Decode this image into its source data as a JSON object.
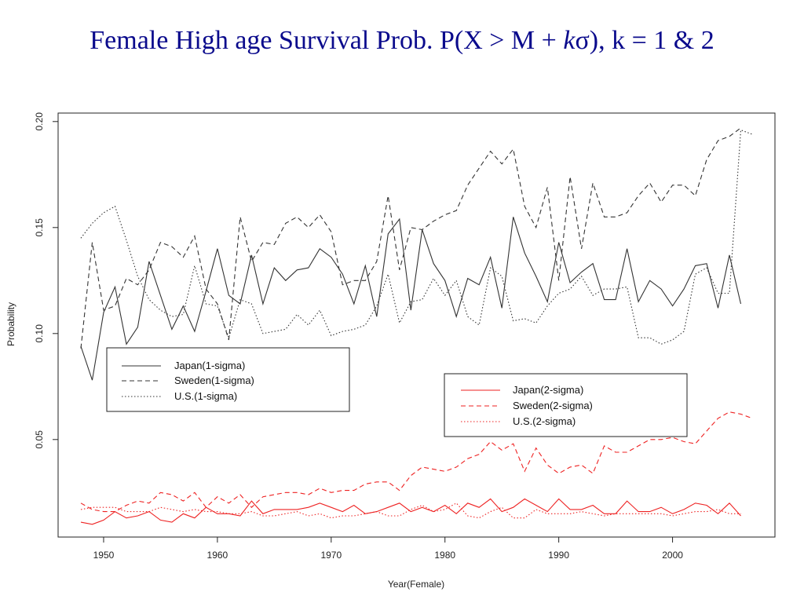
{
  "slide": {
    "title_prefix": "Female High age Survival Prob. P(X > M + ",
    "title_italic": "k",
    "title_sigma": "σ",
    "title_suffix": "), k = 1 & 2"
  },
  "chart_data": {
    "type": "line",
    "xlabel": "Year(Female)",
    "ylabel": "Probability",
    "xlim": [
      1946,
      2009
    ],
    "ylim": [
      0.004,
      0.204
    ],
    "xticks": [
      1950,
      1960,
      1970,
      1980,
      1990,
      2000
    ],
    "yticks": [
      0.05,
      0.1,
      0.15,
      0.2
    ],
    "ytick_labels": [
      "0.05",
      "0.10",
      "0.15",
      "0.20"
    ],
    "grid": false,
    "legends": [
      {
        "placement": "upper-left",
        "entries": [
          "Japan(1-sigma)",
          "Sweden(1-sigma)",
          "U.S.(1-sigma)"
        ]
      },
      {
        "placement": "middle-right",
        "entries": [
          "Japan(2-sigma)",
          "Sweden(2-sigma)",
          "U.S.(2-sigma)"
        ]
      }
    ],
    "series": [
      {
        "name": "Japan(1-sigma)",
        "color": "#333333",
        "dash": "solid",
        "x": [
          1948,
          1949,
          1950,
          1951,
          1952,
          1953,
          1954,
          1955,
          1956,
          1957,
          1958,
          1959,
          1960,
          1961,
          1962,
          1963,
          1964,
          1965,
          1966,
          1967,
          1968,
          1969,
          1970,
          1971,
          1972,
          1973,
          1974,
          1975,
          1976,
          1977,
          1978,
          1979,
          1980,
          1981,
          1982,
          1983,
          1984,
          1985,
          1986,
          1987,
          1988,
          1989,
          1990,
          1991,
          1992,
          1993,
          1994,
          1995,
          1996,
          1997,
          1998,
          1999,
          2000,
          2001,
          2002,
          2003,
          2004,
          2005,
          2006
        ],
        "y": [
          0.094,
          0.078,
          0.11,
          0.122,
          0.095,
          0.103,
          0.134,
          0.118,
          0.102,
          0.113,
          0.101,
          0.12,
          0.14,
          0.118,
          0.114,
          0.137,
          0.114,
          0.131,
          0.125,
          0.13,
          0.131,
          0.14,
          0.136,
          0.128,
          0.114,
          0.132,
          0.108,
          0.147,
          0.154,
          0.111,
          0.149,
          0.133,
          0.125,
          0.108,
          0.126,
          0.123,
          0.136,
          0.112,
          0.155,
          0.138,
          0.127,
          0.115,
          0.143,
          0.124,
          0.129,
          0.133,
          0.116,
          0.116,
          0.14,
          0.115,
          0.125,
          0.121,
          0.113,
          0.121,
          0.132,
          0.133,
          0.112,
          0.137,
          0.114
        ]
      },
      {
        "name": "Sweden(1-sigma)",
        "color": "#333333",
        "dash": "dashed",
        "x": [
          1948,
          1949,
          1950,
          1951,
          1952,
          1953,
          1954,
          1955,
          1956,
          1957,
          1958,
          1959,
          1960,
          1961,
          1962,
          1963,
          1964,
          1965,
          1966,
          1967,
          1968,
          1969,
          1970,
          1971,
          1972,
          1973,
          1974,
          1975,
          1976,
          1977,
          1978,
          1979,
          1980,
          1981,
          1982,
          1983,
          1984,
          1985,
          1986,
          1987,
          1988,
          1989,
          1990,
          1991,
          1992,
          1993,
          1994,
          1995,
          1996,
          1997,
          1998,
          1999,
          2000,
          2001,
          2002,
          2003,
          2004,
          2005,
          2006
        ],
        "y": [
          0.093,
          0.143,
          0.111,
          0.113,
          0.126,
          0.123,
          0.13,
          0.143,
          0.141,
          0.136,
          0.146,
          0.121,
          0.114,
          0.097,
          0.155,
          0.134,
          0.143,
          0.142,
          0.152,
          0.155,
          0.15,
          0.156,
          0.148,
          0.123,
          0.125,
          0.125,
          0.134,
          0.165,
          0.13,
          0.15,
          0.149,
          0.153,
          0.156,
          0.158,
          0.17,
          0.178,
          0.186,
          0.18,
          0.187,
          0.16,
          0.15,
          0.169,
          0.125,
          0.174,
          0.14,
          0.171,
          0.155,
          0.155,
          0.157,
          0.165,
          0.171,
          0.162,
          0.17,
          0.17,
          0.165,
          0.182,
          0.191,
          0.193,
          0.197
        ]
      },
      {
        "name": "U.S.(1-sigma)",
        "color": "#333333",
        "dash": "dotted",
        "x": [
          1948,
          1949,
          1950,
          1951,
          1952,
          1953,
          1954,
          1955,
          1956,
          1957,
          1958,
          1959,
          1960,
          1961,
          1962,
          1963,
          1964,
          1965,
          1966,
          1967,
          1968,
          1969,
          1970,
          1971,
          1972,
          1973,
          1974,
          1975,
          1976,
          1977,
          1978,
          1979,
          1980,
          1981,
          1982,
          1983,
          1984,
          1985,
          1986,
          1987,
          1988,
          1989,
          1990,
          1991,
          1992,
          1993,
          1994,
          1995,
          1996,
          1997,
          1998,
          1999,
          2000,
          2001,
          2002,
          2003,
          2004,
          2005,
          2006,
          2007
        ],
        "y": [
          0.145,
          0.152,
          0.157,
          0.16,
          0.144,
          0.127,
          0.116,
          0.111,
          0.108,
          0.109,
          0.132,
          0.114,
          0.113,
          0.098,
          0.116,
          0.114,
          0.1,
          0.101,
          0.102,
          0.109,
          0.104,
          0.111,
          0.099,
          0.101,
          0.102,
          0.104,
          0.113,
          0.128,
          0.105,
          0.115,
          0.116,
          0.126,
          0.118,
          0.125,
          0.108,
          0.104,
          0.131,
          0.127,
          0.106,
          0.107,
          0.105,
          0.113,
          0.119,
          0.121,
          0.127,
          0.118,
          0.121,
          0.121,
          0.122,
          0.098,
          0.098,
          0.095,
          0.097,
          0.101,
          0.128,
          0.131,
          0.119,
          0.119,
          0.196,
          0.194
        ]
      },
      {
        "name": "Japan(2-sigma)",
        "color": "#ee2222",
        "dash": "solid",
        "x": [
          1948,
          1949,
          1950,
          1951,
          1952,
          1953,
          1954,
          1955,
          1956,
          1957,
          1958,
          1959,
          1960,
          1961,
          1962,
          1963,
          1964,
          1965,
          1966,
          1967,
          1968,
          1969,
          1970,
          1971,
          1972,
          1973,
          1974,
          1975,
          1976,
          1977,
          1978,
          1979,
          1980,
          1981,
          1982,
          1983,
          1984,
          1985,
          1986,
          1987,
          1988,
          1989,
          1990,
          1991,
          1992,
          1993,
          1994,
          1995,
          1996,
          1997,
          1998,
          1999,
          2000,
          2001,
          2002,
          2003,
          2004,
          2005,
          2006
        ],
        "y": [
          0.011,
          0.01,
          0.012,
          0.016,
          0.013,
          0.014,
          0.016,
          0.012,
          0.011,
          0.015,
          0.013,
          0.018,
          0.015,
          0.015,
          0.014,
          0.021,
          0.015,
          0.017,
          0.017,
          0.017,
          0.018,
          0.02,
          0.018,
          0.016,
          0.019,
          0.015,
          0.016,
          0.018,
          0.02,
          0.016,
          0.018,
          0.016,
          0.019,
          0.015,
          0.02,
          0.018,
          0.022,
          0.016,
          0.018,
          0.022,
          0.019,
          0.016,
          0.022,
          0.017,
          0.017,
          0.019,
          0.015,
          0.015,
          0.021,
          0.016,
          0.016,
          0.018,
          0.015,
          0.017,
          0.02,
          0.019,
          0.015,
          0.02,
          0.014
        ]
      },
      {
        "name": "Sweden(2-sigma)",
        "color": "#ee2222",
        "dash": "dashed",
        "x": [
          1948,
          1949,
          1950,
          1951,
          1952,
          1953,
          1954,
          1955,
          1956,
          1957,
          1958,
          1959,
          1960,
          1961,
          1962,
          1963,
          1964,
          1965,
          1966,
          1967,
          1968,
          1969,
          1970,
          1971,
          1972,
          1973,
          1974,
          1975,
          1976,
          1977,
          1978,
          1979,
          1980,
          1981,
          1982,
          1983,
          1984,
          1985,
          1986,
          1987,
          1988,
          1989,
          1990,
          1991,
          1992,
          1993,
          1994,
          1995,
          1996,
          1997,
          1998,
          1999,
          2000,
          2001,
          2002,
          2003,
          2004,
          2005,
          2006,
          2007
        ],
        "y": [
          0.02,
          0.017,
          0.016,
          0.016,
          0.019,
          0.021,
          0.02,
          0.025,
          0.024,
          0.021,
          0.025,
          0.018,
          0.023,
          0.02,
          0.024,
          0.018,
          0.023,
          0.024,
          0.025,
          0.025,
          0.024,
          0.027,
          0.025,
          0.026,
          0.026,
          0.029,
          0.03,
          0.03,
          0.026,
          0.033,
          0.037,
          0.036,
          0.035,
          0.037,
          0.041,
          0.043,
          0.049,
          0.045,
          0.048,
          0.035,
          0.046,
          0.038,
          0.034,
          0.037,
          0.038,
          0.034,
          0.047,
          0.044,
          0.044,
          0.047,
          0.05,
          0.05,
          0.051,
          0.049,
          0.048,
          0.054,
          0.06,
          0.063,
          0.062,
          0.06
        ]
      },
      {
        "name": "U.S.(2-sigma)",
        "color": "#ee2222",
        "dash": "dotted",
        "x": [
          1948,
          1949,
          1950,
          1951,
          1952,
          1953,
          1954,
          1955,
          1956,
          1957,
          1958,
          1959,
          1960,
          1961,
          1962,
          1963,
          1964,
          1965,
          1966,
          1967,
          1968,
          1969,
          1970,
          1971,
          1972,
          1973,
          1974,
          1975,
          1976,
          1977,
          1978,
          1979,
          1980,
          1981,
          1982,
          1983,
          1984,
          1985,
          1986,
          1987,
          1988,
          1989,
          1990,
          1991,
          1992,
          1993,
          1994,
          1995,
          1996,
          1997,
          1998,
          1999,
          2000,
          2001,
          2002,
          2003,
          2004,
          2005,
          2006
        ],
        "y": [
          0.017,
          0.018,
          0.018,
          0.018,
          0.016,
          0.016,
          0.016,
          0.018,
          0.017,
          0.016,
          0.017,
          0.016,
          0.016,
          0.015,
          0.015,
          0.016,
          0.014,
          0.014,
          0.015,
          0.016,
          0.014,
          0.015,
          0.013,
          0.014,
          0.014,
          0.015,
          0.016,
          0.014,
          0.014,
          0.017,
          0.019,
          0.016,
          0.017,
          0.02,
          0.014,
          0.013,
          0.016,
          0.018,
          0.013,
          0.013,
          0.017,
          0.015,
          0.015,
          0.015,
          0.016,
          0.015,
          0.014,
          0.015,
          0.015,
          0.015,
          0.015,
          0.015,
          0.014,
          0.015,
          0.016,
          0.016,
          0.017,
          0.015,
          0.015
        ]
      }
    ]
  }
}
